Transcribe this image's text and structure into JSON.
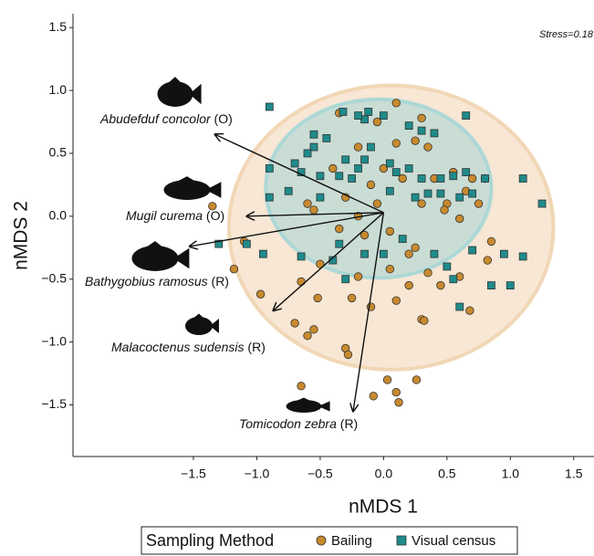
{
  "chart_data": {
    "type": "scatter",
    "x_label": "nMDS 1",
    "y_label": "nMDS 2",
    "annotation": "Stress=0.18",
    "legend_title": "Sampling Method",
    "xlim": [
      -2.45,
      1.66
    ],
    "ylim": [
      -1.91,
      1.61
    ],
    "xticks": [
      {
        "value": -1.5,
        "label": "−1.5"
      },
      {
        "value": -1,
        "label": "−1.0"
      },
      {
        "value": -0.5,
        "label": "−0.5"
      },
      {
        "value": 0,
        "label": "0.0"
      },
      0.5,
      {
        "value": 1,
        "label": "1.0"
      },
      1.5
    ],
    "yticks": [
      {
        "value": -1.5,
        "label": "−1.5"
      },
      {
        "value": -1,
        "label": "−1.0"
      },
      {
        "value": -0.5,
        "label": "−0.5"
      },
      {
        "value": 0,
        "label": "0.0"
      },
      0.5,
      {
        "value": 1,
        "label": "1.0"
      },
      1.5
    ],
    "series": [
      {
        "name": "Bailing",
        "color": "#c88a2e",
        "marker": "circle",
        "ellipse_color": "#f0d4b0",
        "ellipse": {
          "center": [
            0.06,
            -0.09
          ],
          "radii": [
            1.28,
            1.13
          ]
        },
        "x": [
          -1.35,
          -1.1,
          -1.18,
          -0.97,
          -0.65,
          -0.5,
          -0.52,
          -0.7,
          -0.6,
          -0.3,
          -0.28,
          -0.65,
          0.03,
          0.1,
          0.26,
          0.12,
          -0.08,
          -0.55,
          -0.1,
          0.1,
          -0.25,
          -0.2,
          0.05,
          0.2,
          0.35,
          0.45,
          0.6,
          0.68,
          0.3,
          0.32,
          0.2,
          0.85,
          0.82,
          0.25,
          0.05,
          -0.15,
          -0.35,
          -0.6,
          -0.2,
          -0.55,
          -0.3,
          -0.1,
          0.0,
          -0.2,
          0.1,
          0.25,
          0.3,
          0.1,
          -0.05,
          -0.35,
          0.35,
          0.55,
          0.7,
          0.8,
          0.5,
          0.65,
          0.4,
          0.48,
          0.6,
          -0.4,
          0.75,
          -0.05,
          0.15,
          0.3
        ],
        "y": [
          0.08,
          -0.2,
          -0.42,
          -0.62,
          -0.52,
          -0.38,
          -0.65,
          -0.85,
          -0.95,
          -1.05,
          -1.1,
          -1.35,
          -1.3,
          -1.4,
          -1.3,
          -1.48,
          -1.43,
          -0.9,
          -0.72,
          -0.67,
          -0.65,
          -0.48,
          -0.42,
          -0.3,
          -0.45,
          -0.55,
          -0.48,
          -0.75,
          -0.82,
          -0.83,
          -0.55,
          -0.2,
          -0.35,
          -0.25,
          -0.12,
          -0.15,
          -0.1,
          0.1,
          0.0,
          0.05,
          0.15,
          0.25,
          0.38,
          0.55,
          0.58,
          0.6,
          0.78,
          0.9,
          0.75,
          0.82,
          0.55,
          0.35,
          0.3,
          0.3,
          0.1,
          0.2,
          0.3,
          0.05,
          -0.02,
          0.38,
          0.1,
          0.1,
          0.3,
          0.1
        ]
      },
      {
        "name": "Visual census",
        "color": "#1f8b8b",
        "marker": "square",
        "ellipse_color": "#a6d6d6",
        "ellipse": {
          "center": [
            -0.04,
            0.22
          ],
          "radii": [
            0.89,
            0.71
          ]
        },
        "x": [
          -0.9,
          -0.32,
          -0.15,
          -0.2,
          -0.12,
          0.0,
          0.3,
          0.4,
          0.2,
          0.65,
          -0.55,
          -0.45,
          -0.55,
          -0.3,
          -0.15,
          -0.2,
          -0.1,
          0.05,
          -0.6,
          -0.7,
          -0.65,
          -0.9,
          -0.5,
          -0.35,
          -0.25,
          0.1,
          0.2,
          0.3,
          0.45,
          0.55,
          0.65,
          0.8,
          0.05,
          0.25,
          0.45,
          0.6,
          0.7,
          0.35,
          -0.5,
          -0.75,
          -0.9,
          -1.08,
          -1.3,
          -0.95,
          -0.65,
          -0.35,
          0.15,
          0.4,
          0.5,
          0.7,
          0.95,
          1.1,
          1.0,
          0.85,
          0.6,
          0.55,
          0.0,
          -0.15,
          -0.4,
          1.1,
          1.25,
          -0.3
        ],
        "y": [
          0.87,
          0.83,
          0.77,
          0.8,
          0.83,
          0.8,
          0.68,
          0.66,
          0.72,
          0.8,
          0.65,
          0.62,
          0.55,
          0.45,
          0.45,
          0.38,
          0.55,
          0.42,
          0.5,
          0.42,
          0.35,
          0.38,
          0.32,
          0.32,
          0.3,
          0.35,
          0.38,
          0.3,
          0.3,
          0.32,
          0.35,
          0.3,
          0.2,
          0.15,
          0.18,
          0.15,
          0.18,
          0.18,
          0.15,
          0.2,
          0.15,
          -0.22,
          -0.22,
          -0.3,
          -0.32,
          -0.22,
          -0.18,
          -0.3,
          -0.4,
          -0.27,
          -0.3,
          -0.32,
          -0.55,
          -0.55,
          -0.72,
          -0.5,
          -0.3,
          -0.3,
          -0.35,
          0.3,
          0.1,
          -0.5
        ]
      }
    ],
    "vectors": [
      {
        "name": "Abudefduf concolor",
        "code": "(O)",
        "x": -1.33,
        "y": 0.65
      },
      {
        "name": "Mugil curema",
        "code": "(O)",
        "x": -1.08,
        "y": 0.0
      },
      {
        "name": "Bathygobius ramosus",
        "code": "(R)",
        "x": -1.53,
        "y": -0.24
      },
      {
        "name": "Malacoctenus sudensis",
        "code": "(R)",
        "x": -0.87,
        "y": -0.75
      },
      {
        "name": "Tomicodon zebra",
        "code": "(R)",
        "x": -0.24,
        "y": -1.55
      }
    ]
  }
}
